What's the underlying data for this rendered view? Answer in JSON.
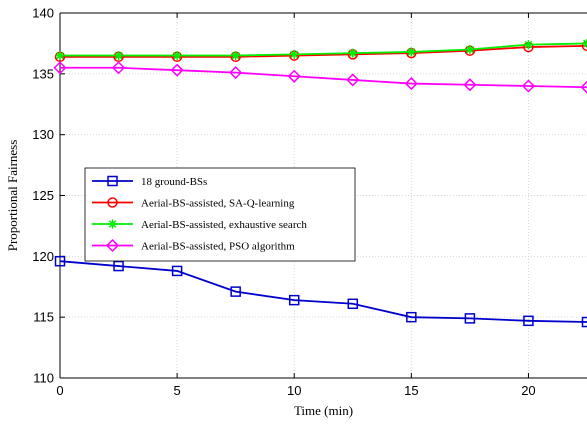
{
  "chart_data": {
    "type": "line",
    "xlabel": "Time (min)",
    "ylabel": "Proportional Fairness",
    "xlim": [
      0,
      22.5
    ],
    "ylim": [
      110,
      140
    ],
    "xticks": [
      0,
      5,
      10,
      15,
      20
    ],
    "yticks": [
      110,
      115,
      120,
      125,
      130,
      135,
      140
    ],
    "grid": true,
    "legend_position": "center-left",
    "series": [
      {
        "name": "18 ground-BSs",
        "color": "#0000cc",
        "marker": "square",
        "x": [
          0,
          2.5,
          5,
          7.5,
          10,
          12.5,
          15,
          17.5,
          20,
          22.5
        ],
        "values": [
          119.6,
          119.2,
          118.8,
          117.1,
          116.4,
          116.1,
          115.0,
          114.9,
          114.7,
          114.6
        ]
      },
      {
        "name": "Aerial-BS-assisted, SA-Q-learning",
        "color": "#ff0000",
        "marker": "circle",
        "x": [
          0,
          2.5,
          5,
          7.5,
          10,
          12.5,
          15,
          17.5,
          20,
          22.5
        ],
        "values": [
          136.4,
          136.4,
          136.4,
          136.4,
          136.5,
          136.6,
          136.7,
          136.9,
          137.2,
          137.3
        ]
      },
      {
        "name": "Aerial-BS-assisted, exhaustive search",
        "color": "#00ee00",
        "marker": "asterisk",
        "x": [
          0,
          2.5,
          5,
          7.5,
          10,
          12.5,
          15,
          17.5,
          20,
          22.5
        ],
        "values": [
          136.5,
          136.5,
          136.5,
          136.5,
          136.6,
          136.7,
          136.8,
          137.0,
          137.4,
          137.5
        ]
      },
      {
        "name": "Aerial-BS-assisted, PSO algorithm",
        "color": "#ff00ff",
        "marker": "diamond",
        "x": [
          0,
          2.5,
          5,
          7.5,
          10,
          12.5,
          15,
          17.5,
          20,
          22.5
        ],
        "values": [
          135.5,
          135.5,
          135.3,
          135.1,
          134.8,
          134.5,
          134.2,
          134.1,
          134.0,
          133.9
        ]
      }
    ]
  }
}
